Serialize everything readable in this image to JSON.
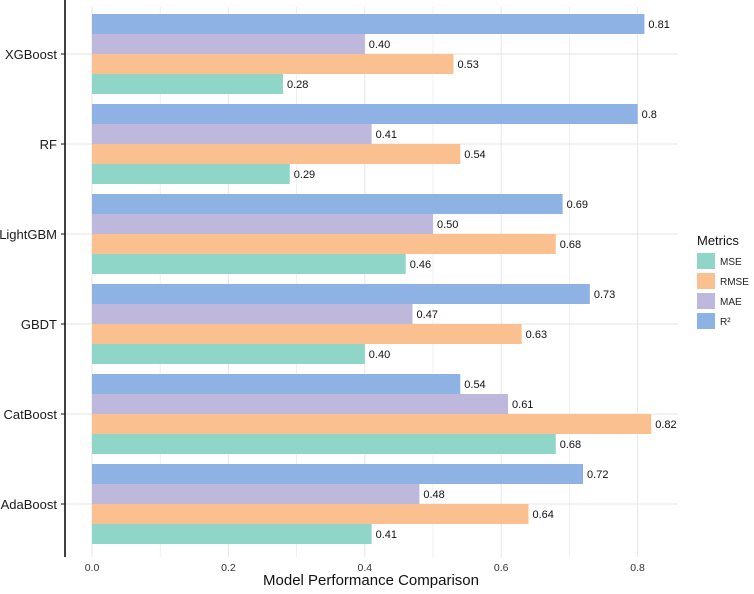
{
  "chart_data": {
    "type": "bar",
    "orientation": "horizontal",
    "title": "",
    "xlabel": "Model Performance Comparison",
    "ylabel": "",
    "xlim": [
      -0.04,
      0.86
    ],
    "xticks": [
      0.0,
      0.2,
      0.4,
      0.6,
      0.8
    ],
    "xtick_labels": [
      "0.0",
      "0.2",
      "0.4",
      "0.6",
      "0.8"
    ],
    "grid": true,
    "categories": [
      "XGBoost",
      "RF",
      "LightGBM",
      "GBDT",
      "CatBoost",
      "AdaBoost"
    ],
    "series": [
      {
        "name": "R²",
        "legend_label": "R²",
        "color": "#8EB2E3",
        "values": [
          0.81,
          0.8,
          0.69,
          0.73,
          0.54,
          0.72
        ],
        "labels": [
          "0.81",
          "0.8",
          "0.69",
          "0.73",
          "0.54",
          "0.72"
        ]
      },
      {
        "name": "MAE",
        "legend_label": "MAE",
        "color": "#BEB8DC",
        "values": [
          0.4,
          0.41,
          0.5,
          0.47,
          0.61,
          0.48
        ],
        "labels": [
          "0.40",
          "0.41",
          "0.50",
          "0.47",
          "0.61",
          "0.48"
        ]
      },
      {
        "name": "RMSE",
        "legend_label": "RMSE",
        "color": "#FAC08F",
        "values": [
          0.53,
          0.54,
          0.68,
          0.63,
          0.82,
          0.64
        ],
        "labels": [
          "0.53",
          "0.54",
          "0.68",
          "0.63",
          "0.82",
          "0.64"
        ]
      },
      {
        "name": "MSE",
        "legend_label": "MSE",
        "color": "#8FD5C8",
        "values": [
          0.28,
          0.29,
          0.46,
          0.4,
          0.68,
          0.41
        ],
        "labels": [
          "0.28",
          "0.29",
          "0.46",
          "0.40",
          "0.68",
          "0.41"
        ]
      }
    ],
    "legend": {
      "title": "Metrics",
      "position": "right",
      "order": [
        "MSE",
        "RMSE",
        "MAE",
        "R²"
      ]
    },
    "colors": {
      "grid": "#e6e6e6",
      "axis": "#111111",
      "highlighted_category_label": "#555555"
    }
  }
}
